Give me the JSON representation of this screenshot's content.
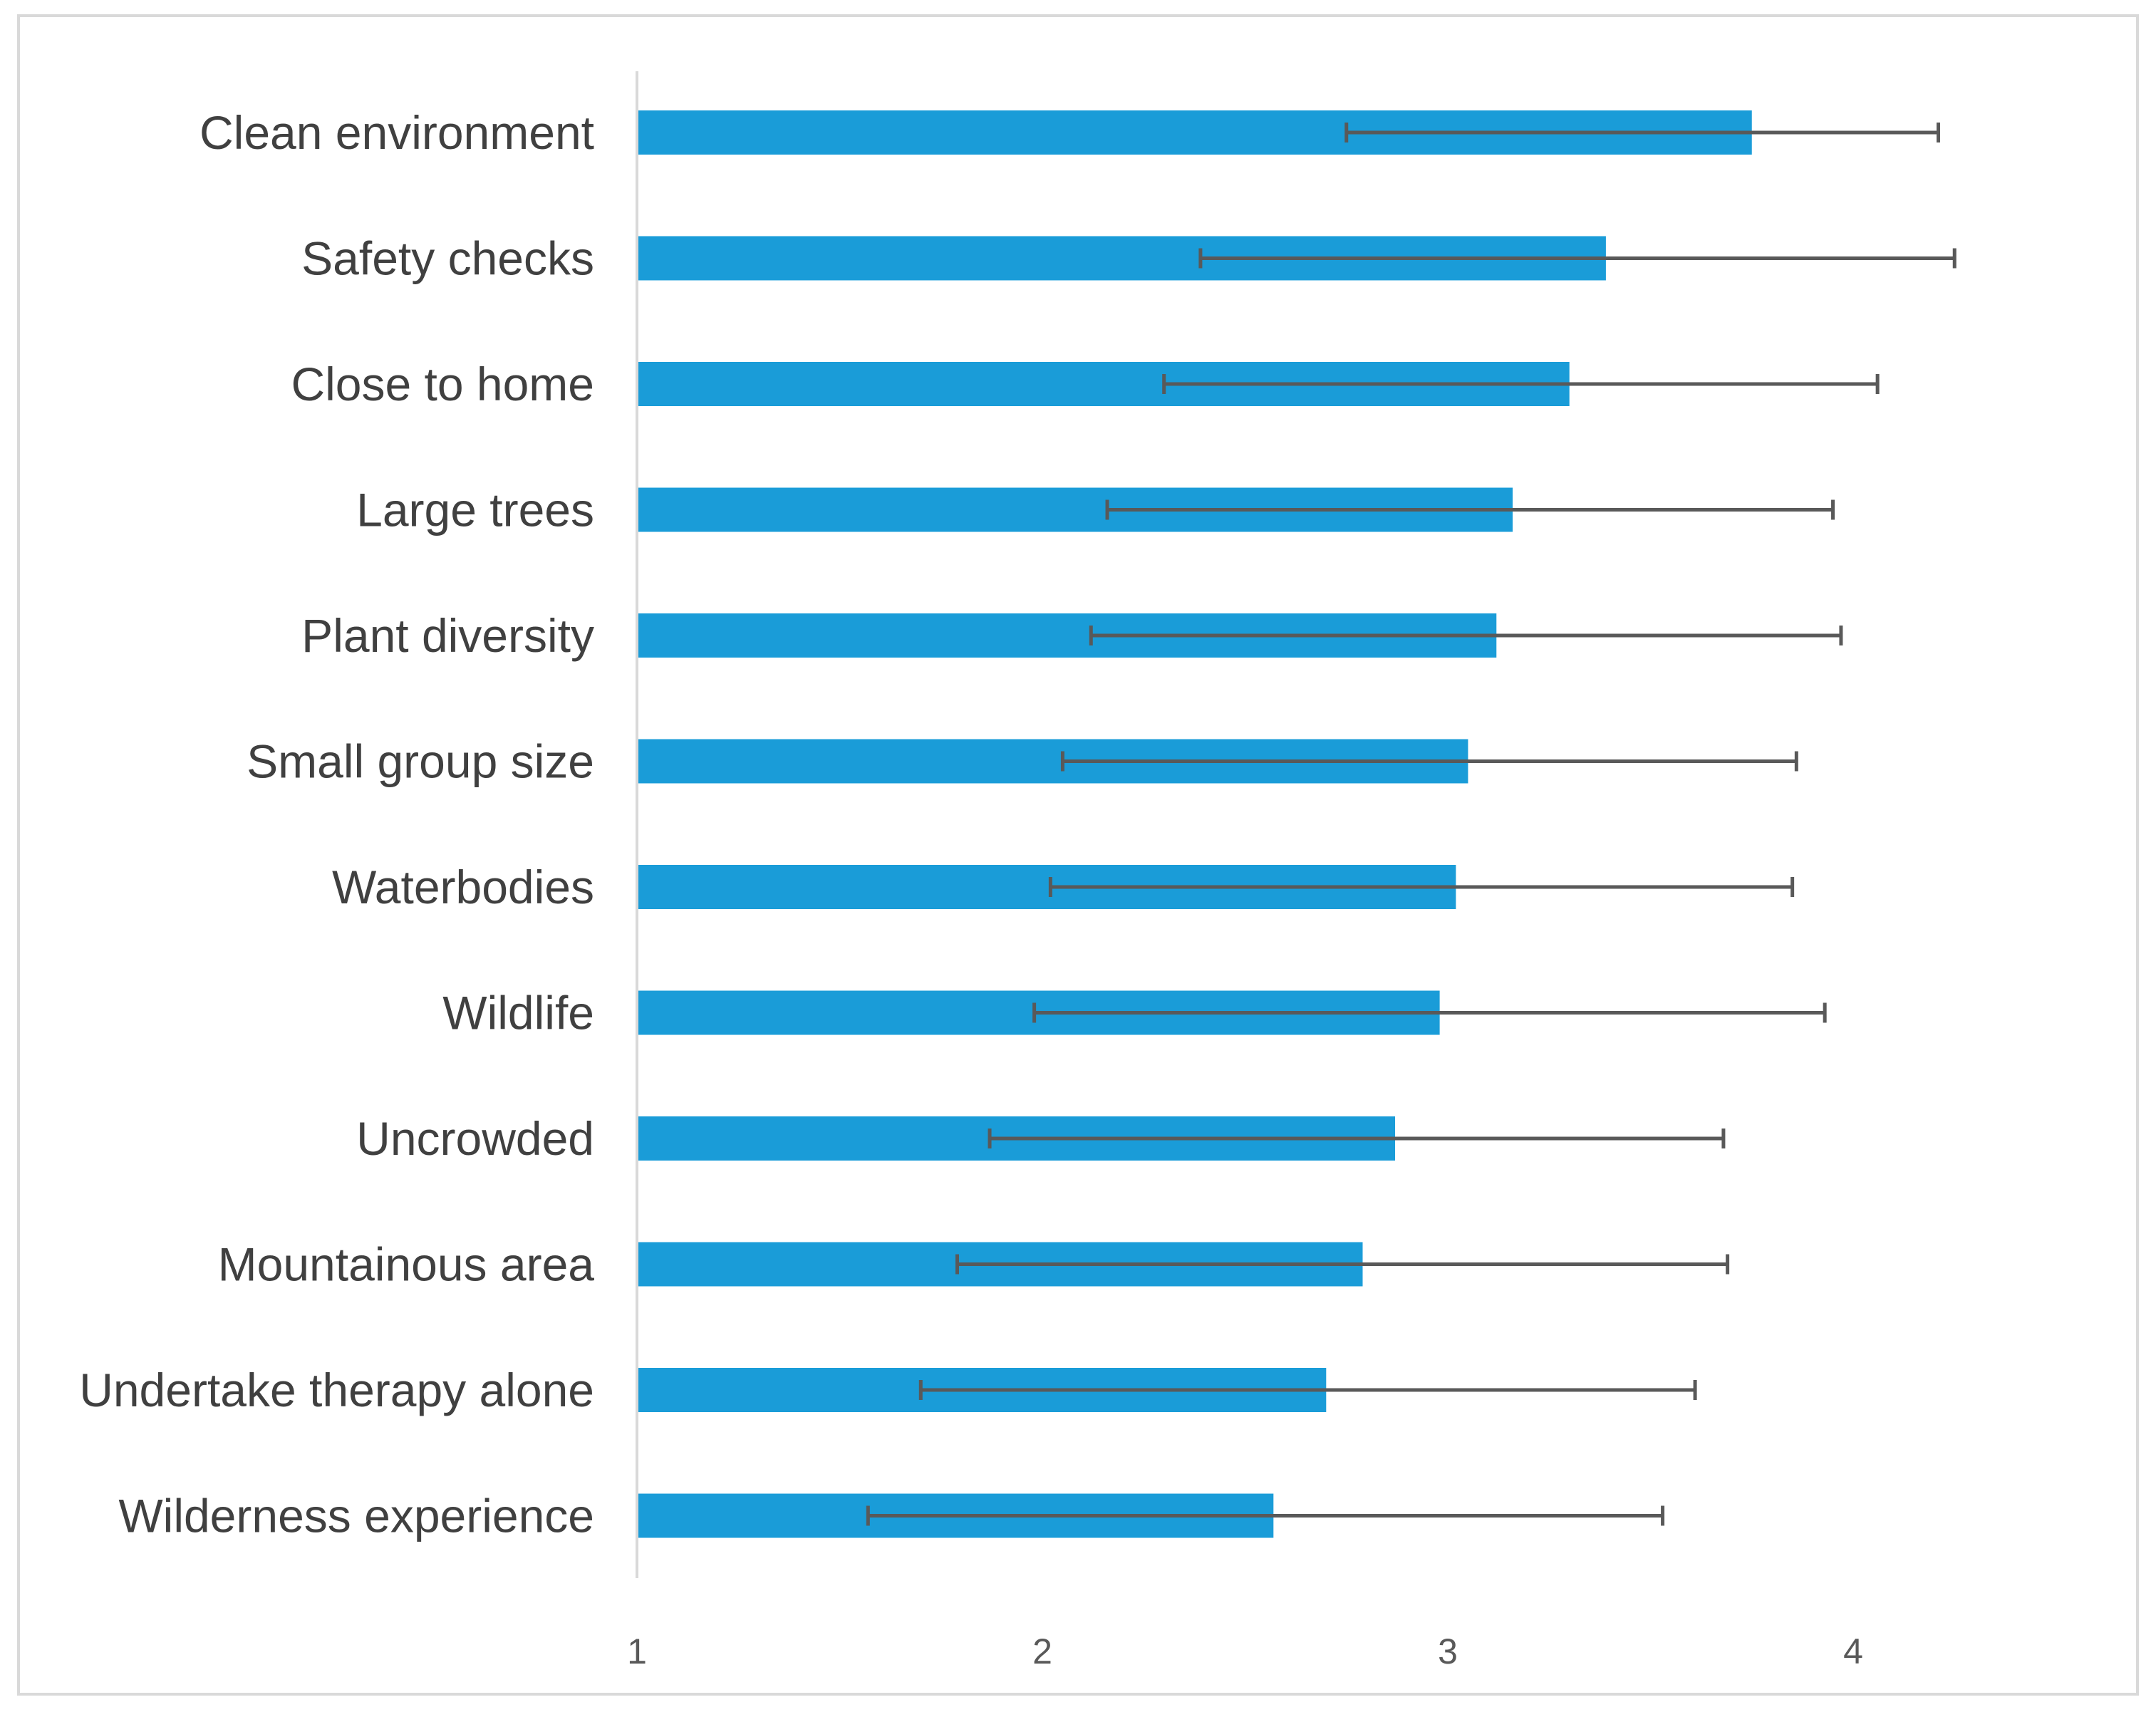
{
  "chart_data": {
    "type": "bar",
    "orientation": "horizontal",
    "title": "",
    "xlabel": "",
    "ylabel": "",
    "xlim": [
      1,
      4.4
    ],
    "xticks": [
      "1",
      "2",
      "3",
      "4"
    ],
    "grid": false,
    "legend": "none",
    "bar_color": "#1a9cd8",
    "error_bar_color": "#595959",
    "categories": [
      "Clean environment",
      "Safety checks",
      "Close to home",
      "Large trees",
      "Plant diversity",
      "Small group size",
      "Waterbodies",
      "Wildlife",
      "Uncrowded",
      "Mountainous area",
      "Undertake therapy alone",
      "Wilderness experience"
    ],
    "values": [
      3.75,
      3.39,
      3.3,
      3.16,
      3.12,
      3.05,
      3.02,
      2.98,
      2.87,
      2.79,
      2.7,
      2.57
    ],
    "error_low": [
      2.75,
      2.39,
      2.3,
      2.16,
      2.12,
      2.05,
      2.02,
      1.98,
      1.87,
      1.79,
      1.7,
      1.57
    ],
    "error_high": [
      4.21,
      4.25,
      4.06,
      3.95,
      3.97,
      3.86,
      3.85,
      3.93,
      3.68,
      3.69,
      3.61,
      3.53
    ]
  }
}
